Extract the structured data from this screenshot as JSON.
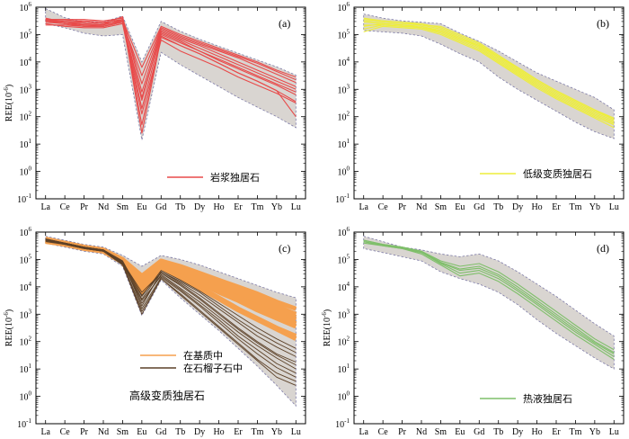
{
  "figure": {
    "colors": {
      "envelope_fill": "#d9d5d1",
      "envelope_edge": "#7d7aa6",
      "magmatic": "#e84a4a",
      "low_grade": "#eeee3a",
      "matrix": "#f5a04e",
      "garnet": "#5c4128",
      "hydrothermal": "#7fbf6a",
      "axis": "#000000"
    }
  },
  "chart_data": [
    {
      "type": "line",
      "panel_label": "(a)",
      "ylabel": "REE(10^-6)",
      "yscale": "log",
      "ylim_exp": [
        -1,
        6
      ],
      "categories": [
        "La",
        "Ce",
        "Pr",
        "Nd",
        "Sm",
        "Eu",
        "Gd",
        "Tb",
        "Dy",
        "Ho",
        "Er",
        "Tm",
        "Yb",
        "Lu"
      ],
      "ytick_exponents": [
        -1,
        0,
        1,
        2,
        3,
        4,
        5,
        6
      ],
      "envelope": {
        "upper_exp": [
          5.95,
          5.62,
          5.45,
          5.45,
          5.68,
          4.0,
          5.48,
          5.12,
          4.83,
          4.57,
          4.32,
          4.07,
          3.82,
          3.52
        ],
        "lower_exp": [
          5.4,
          5.25,
          5.05,
          4.95,
          5.0,
          1.15,
          4.35,
          3.9,
          3.5,
          3.1,
          2.7,
          2.35,
          2.0,
          1.6
        ]
      },
      "series_style": "magmatic",
      "series": [
        {
          "name": "岩浆独居石",
          "values_exp": [
            5.55,
            5.55,
            5.55,
            5.5,
            5.6,
            1.4,
            4.9,
            4.6,
            4.3,
            3.95,
            3.6,
            3.3,
            2.95,
            2.0
          ]
        },
        {
          "values_exp": [
            5.5,
            5.5,
            5.5,
            5.45,
            5.55,
            1.7,
            4.95,
            4.6,
            4.3,
            3.95,
            3.6,
            3.3,
            2.95,
            2.55
          ]
        },
        {
          "values_exp": [
            5.6,
            5.45,
            5.45,
            5.4,
            5.5,
            2.3,
            5.0,
            4.7,
            4.4,
            4.05,
            3.75,
            3.45,
            3.15,
            2.8
          ]
        },
        {
          "values_exp": [
            5.35,
            5.35,
            5.3,
            5.3,
            5.45,
            2.6,
            5.1,
            4.8,
            4.5,
            4.2,
            3.9,
            3.6,
            3.3,
            3.0
          ]
        },
        {
          "values_exp": [
            5.55,
            5.55,
            5.45,
            5.4,
            5.65,
            2.9,
            5.15,
            4.85,
            4.6,
            4.3,
            4.0,
            3.7,
            3.4,
            3.1
          ]
        },
        {
          "values_exp": [
            5.5,
            5.45,
            5.35,
            5.35,
            5.55,
            3.2,
            5.2,
            4.9,
            4.65,
            4.4,
            4.15,
            3.85,
            3.55,
            3.25
          ]
        },
        {
          "values_exp": [
            5.45,
            5.4,
            5.3,
            5.3,
            5.45,
            3.5,
            5.25,
            4.95,
            4.7,
            4.45,
            4.2,
            3.95,
            3.65,
            3.35
          ]
        },
        {
          "values_exp": [
            5.55,
            5.45,
            5.4,
            5.35,
            5.55,
            3.8,
            5.3,
            5.0,
            4.75,
            4.5,
            4.25,
            4.0,
            3.7,
            3.45
          ]
        },
        {
          "values_exp": [
            5.4,
            5.3,
            5.25,
            5.25,
            5.4,
            2.1,
            4.8,
            4.4,
            4.1,
            3.8,
            3.45,
            3.15,
            2.85,
            2.5
          ]
        },
        {
          "values_exp": [
            5.5,
            5.4,
            5.35,
            5.3,
            5.5,
            2.7,
            5.05,
            4.75,
            4.4,
            4.1,
            3.8,
            3.5,
            3.2,
            2.9
          ]
        }
      ]
    },
    {
      "type": "line",
      "panel_label": "(b)",
      "ylabel": "",
      "yscale": "log",
      "ylim_exp": [
        -1,
        6
      ],
      "categories": [
        "La",
        "Ce",
        "Pr",
        "Nd",
        "Sm",
        "Eu",
        "Gd",
        "Tb",
        "Dy",
        "Ho",
        "Er",
        "Tm",
        "Yb",
        "Lu"
      ],
      "ytick_exponents": [
        -1,
        0,
        1,
        2,
        3,
        4,
        5,
        6
      ],
      "envelope": {
        "upper_exp": [
          5.75,
          5.6,
          5.5,
          5.45,
          5.4,
          5.05,
          4.75,
          4.4,
          4.0,
          3.6,
          3.3,
          3.0,
          2.7,
          2.25
        ],
        "lower_exp": [
          5.15,
          5.1,
          5.05,
          4.95,
          4.65,
          4.3,
          4.0,
          3.45,
          3.0,
          2.6,
          2.2,
          1.8,
          1.45,
          1.2
        ]
      },
      "series_style": "low_grade",
      "series": [
        {
          "name": "低级变质独居石",
          "values_exp": [
            5.1,
            5.3,
            5.25,
            5.2,
            5.0,
            4.7,
            4.4,
            3.95,
            3.5,
            3.05,
            2.65,
            2.3,
            1.95,
            1.6
          ]
        },
        {
          "values_exp": [
            5.2,
            5.35,
            5.3,
            5.25,
            5.05,
            4.75,
            4.45,
            4.0,
            3.55,
            3.1,
            2.7,
            2.35,
            2.0,
            1.7
          ]
        },
        {
          "values_exp": [
            5.3,
            5.4,
            5.35,
            5.3,
            5.15,
            4.85,
            4.55,
            4.1,
            3.65,
            3.2,
            2.8,
            2.45,
            2.1,
            1.8
          ]
        },
        {
          "values_exp": [
            5.5,
            5.45,
            5.4,
            5.35,
            5.2,
            4.9,
            4.6,
            4.15,
            3.7,
            3.25,
            2.85,
            2.5,
            2.15,
            1.85
          ]
        },
        {
          "values_exp": [
            5.6,
            5.5,
            5.45,
            5.4,
            5.25,
            4.95,
            4.65,
            4.2,
            3.75,
            3.3,
            2.9,
            2.55,
            2.2,
            1.9
          ]
        },
        {
          "values_exp": [
            5.45,
            5.4,
            5.35,
            5.25,
            5.1,
            4.8,
            4.5,
            4.05,
            3.6,
            3.15,
            2.75,
            2.4,
            2.05,
            1.75
          ]
        },
        {
          "values_exp": [
            5.35,
            5.35,
            5.3,
            5.25,
            5.15,
            4.85,
            4.6,
            4.2,
            3.8,
            3.35,
            2.95,
            2.6,
            2.25,
            1.95
          ]
        },
        {
          "values_exp": [
            5.55,
            5.5,
            5.45,
            5.35,
            5.3,
            5.0,
            4.7,
            4.25,
            3.8,
            3.35,
            2.95,
            2.6,
            2.25,
            1.9
          ]
        }
      ]
    },
    {
      "type": "line",
      "panel_label": "(c)",
      "ylabel": "REE(10^-6)",
      "yscale": "log",
      "ylim_exp": [
        -1,
        6
      ],
      "categories": [
        "La",
        "Ce",
        "Pr",
        "Nd",
        "Sm",
        "Eu",
        "Gd",
        "Tb",
        "Dy",
        "Ho",
        "Er",
        "Tm",
        "Yb",
        "Lu"
      ],
      "ytick_exponents": [
        -1,
        0,
        1,
        2,
        3,
        4,
        5,
        6
      ],
      "annotation": "高级变质独居石",
      "envelope": {
        "upper_exp": [
          5.85,
          5.7,
          5.55,
          5.45,
          5.15,
          4.75,
          5.15,
          5.0,
          4.8,
          4.55,
          4.3,
          4.05,
          3.8,
          3.6
        ],
        "lower_exp": [
          5.6,
          5.45,
          5.3,
          5.2,
          4.75,
          2.95,
          4.25,
          3.6,
          3.0,
          2.4,
          1.75,
          1.1,
          0.4,
          -0.35
        ]
      },
      "series_groups": [
        {
          "style": "matrix",
          "name": "在基质中",
          "series": [
            {
              "values_exp": [
                5.7,
                5.6,
                5.45,
                5.35,
                5.0,
                4.4,
                4.95,
                4.75,
                4.5,
                4.25,
                4.0,
                3.75,
                3.45,
                3.2
              ]
            },
            {
              "values_exp": [
                5.7,
                5.6,
                5.45,
                5.35,
                4.95,
                4.3,
                4.9,
                4.7,
                4.45,
                4.2,
                3.9,
                3.6,
                3.3,
                3.0
              ]
            },
            {
              "values_exp": [
                5.65,
                5.55,
                5.4,
                5.3,
                4.95,
                4.2,
                4.85,
                4.6,
                4.3,
                4.0,
                3.7,
                3.4,
                3.1,
                2.8
              ]
            },
            {
              "values_exp": [
                5.7,
                5.55,
                5.45,
                5.3,
                4.9,
                4.1,
                4.8,
                4.5,
                4.15,
                3.8,
                3.5,
                3.15,
                2.85,
                2.55
              ]
            },
            {
              "values_exp": [
                5.75,
                5.6,
                5.45,
                5.35,
                5.0,
                4.0,
                4.9,
                4.6,
                4.25,
                3.95,
                3.6,
                3.3,
                3.0,
                2.65
              ]
            },
            {
              "values_exp": [
                5.7,
                5.6,
                5.4,
                5.3,
                4.9,
                3.9,
                4.75,
                4.4,
                4.0,
                3.6,
                3.2,
                2.85,
                2.5,
                2.2
              ]
            },
            {
              "values_exp": [
                5.7,
                5.55,
                5.45,
                5.3,
                4.95,
                4.25,
                4.95,
                4.7,
                4.4,
                4.1,
                3.8,
                3.5,
                3.2,
                2.9
              ]
            },
            {
              "values_exp": [
                5.7,
                5.6,
                5.45,
                5.35,
                4.9,
                3.8,
                4.7,
                4.35,
                3.95,
                3.55,
                3.15,
                2.8,
                2.45,
                2.1
              ]
            }
          ]
        },
        {
          "style": "garnet",
          "name": "在石榴子石中",
          "series": [
            {
              "values_exp": [
                5.75,
                5.6,
                5.45,
                5.35,
                4.9,
                3.8,
                4.5,
                4.1,
                3.6,
                3.05,
                2.5,
                2.0,
                1.55,
                1.25
              ]
            },
            {
              "values_exp": [
                5.7,
                5.55,
                5.4,
                5.3,
                4.85,
                3.5,
                4.4,
                3.9,
                3.35,
                2.8,
                2.2,
                1.7,
                1.2,
                0.85
              ]
            },
            {
              "values_exp": [
                5.7,
                5.6,
                5.45,
                5.35,
                4.95,
                3.3,
                4.55,
                4.2,
                3.8,
                3.3,
                2.8,
                2.35,
                1.95,
                1.6
              ]
            },
            {
              "values_exp": [
                5.65,
                5.55,
                5.4,
                5.3,
                4.8,
                3.1,
                4.3,
                3.75,
                3.15,
                2.55,
                1.95,
                1.35,
                0.85,
                0.55
              ]
            },
            {
              "values_exp": [
                5.75,
                5.6,
                5.45,
                5.35,
                4.95,
                3.65,
                4.6,
                4.25,
                3.85,
                3.4,
                2.95,
                2.5,
                2.1,
                1.75
              ]
            },
            {
              "values_exp": [
                5.7,
                5.55,
                5.4,
                5.3,
                4.85,
                3.2,
                4.35,
                3.85,
                3.3,
                2.7,
                2.1,
                1.55,
                1.05,
                0.7
              ]
            },
            {
              "values_exp": [
                5.7,
                5.6,
                5.45,
                5.35,
                4.9,
                3.7,
                4.5,
                4.05,
                3.55,
                3.0,
                2.45,
                1.95,
                1.5,
                1.15
              ]
            },
            {
              "values_exp": [
                5.72,
                5.58,
                5.42,
                5.32,
                4.88,
                3.4,
                4.45,
                3.95,
                3.45,
                2.9,
                2.35,
                1.85,
                1.4,
                1.0
              ]
            },
            {
              "values_exp": [
                5.68,
                5.56,
                5.42,
                5.3,
                4.82,
                3.0,
                4.3,
                3.7,
                3.1,
                2.5,
                1.9,
                1.3,
                0.7,
                0.4
              ]
            },
            {
              "values_exp": [
                5.74,
                5.6,
                5.44,
                5.34,
                4.92,
                3.55,
                4.55,
                4.15,
                3.7,
                3.2,
                2.7,
                2.2,
                1.8,
                1.45
              ]
            }
          ]
        }
      ]
    },
    {
      "type": "line",
      "panel_label": "(d)",
      "ylabel": "REE(10^-6)",
      "yscale": "log",
      "ylim_exp": [
        -1,
        6
      ],
      "categories": [
        "La",
        "Ce",
        "Pr",
        "Nd",
        "Sm",
        "Eu",
        "Gd",
        "Tb",
        "Dy",
        "Ho",
        "Er",
        "Tm",
        "Yb",
        "Lu"
      ],
      "ytick_exponents": [
        -1,
        0,
        1,
        2,
        3,
        4,
        5,
        6
      ],
      "envelope": {
        "upper_exp": [
          5.85,
          5.65,
          5.45,
          5.35,
          5.2,
          5.1,
          5.2,
          4.95,
          4.55,
          4.1,
          3.65,
          3.15,
          2.65,
          2.2
        ],
        "lower_exp": [
          5.4,
          5.25,
          5.1,
          4.95,
          4.55,
          4.3,
          4.1,
          3.8,
          3.35,
          2.8,
          2.3,
          1.85,
          1.4,
          1.0
        ]
      },
      "series_style": "hydrothermal",
      "series": [
        {
          "name": "热液独居石",
          "values_exp": [
            5.7,
            5.55,
            5.45,
            5.3,
            4.95,
            4.75,
            4.85,
            4.55,
            4.1,
            3.6,
            3.1,
            2.6,
            2.1,
            1.7
          ]
        },
        {
          "values_exp": [
            5.65,
            5.5,
            5.4,
            5.25,
            4.85,
            4.5,
            4.6,
            4.3,
            3.85,
            3.35,
            2.85,
            2.35,
            1.9,
            1.45
          ]
        },
        {
          "values_exp": [
            5.6,
            5.5,
            5.4,
            5.2,
            4.8,
            4.4,
            4.5,
            4.2,
            3.75,
            3.25,
            2.75,
            2.25,
            1.8,
            1.35
          ]
        },
        {
          "values_exp": [
            5.7,
            5.55,
            5.45,
            5.3,
            4.9,
            4.65,
            4.75,
            4.45,
            4.0,
            3.5,
            3.0,
            2.5,
            2.0,
            1.6
          ]
        },
        {
          "values_exp": [
            5.65,
            5.52,
            5.42,
            5.27,
            4.88,
            4.6,
            4.68,
            4.38,
            3.92,
            3.42,
            2.92,
            2.42,
            1.95,
            1.55
          ]
        }
      ]
    }
  ]
}
